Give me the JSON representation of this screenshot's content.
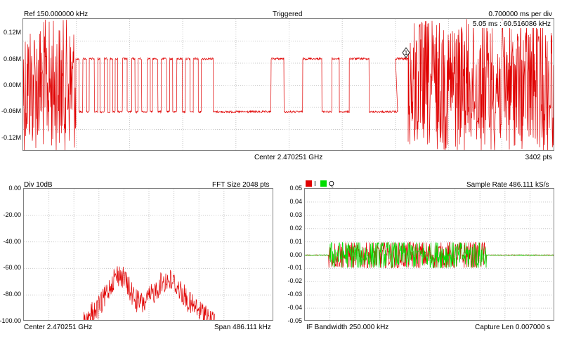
{
  "top": {
    "ref_label": "Ref 150.000000 kHz",
    "status": "Triggered",
    "time_div": "0.700000 ms per div",
    "marker_readout": "5.05 ms : 60.516086 kHz",
    "center": "Center 2.470251 GHz",
    "points": "3402 pts",
    "marker_label": "1",
    "y_ticks": [
      "0.12M",
      "0.06M",
      "0.00M",
      "-0.06M",
      "-0.12M"
    ],
    "trace_color": "#e00000"
  },
  "spectrum": {
    "div_label": "Div 10dB",
    "fft_size": "FFT Size 2048 pts",
    "center": "Center 2.470251 GHz",
    "span": "Span 486.111 kHz",
    "y_ticks": [
      "0.00",
      "-20.00",
      "-40.00",
      "-60.00",
      "-80.00",
      "-100.00"
    ],
    "trace_color": "#e00000"
  },
  "iq": {
    "legend_i": "I",
    "legend_q": "Q",
    "i_color": "#e00000",
    "q_color": "#00dd00",
    "sample_rate": "Sample Rate 486.111 kS/s",
    "if_bandwidth": "IF Bandwidth 250.000 kHz",
    "capture_len": "Capture Len 0.007000 s",
    "y_ticks": [
      "0.05",
      "0.04",
      "0.03",
      "0.02",
      "0.01",
      "0.00",
      "-0.01",
      "-0.02",
      "-0.03",
      "-0.04",
      "-0.05"
    ]
  },
  "chart_data": [
    {
      "type": "line",
      "title": "",
      "xlabel": "Center 2.470251 GHz",
      "ylabel": "",
      "ylim": [
        -0.15,
        0.15
      ],
      "y_ticks": [
        0.12,
        0.06,
        0.0,
        -0.06,
        -0.12
      ],
      "grid": true,
      "series": [
        {
          "values": [
            0.0
          ]
        }
      ]
    },
    {
      "type": "line",
      "title": "",
      "xlabel": "",
      "ylabel": "",
      "ylim": [
        -100,
        0
      ],
      "y_ticks": [
        0,
        -20,
        -40,
        -60,
        -80,
        -100
      ],
      "grid": true,
      "series": [
        {
          "values": [
            -100.0
          ]
        }
      ]
    },
    {
      "type": "line",
      "title": "",
      "xlabel": "",
      "ylabel": "",
      "ylim": [
        -0.05,
        0.05
      ],
      "y_ticks": [
        0.05,
        0.04,
        0.03,
        0.02,
        0.01,
        0.0,
        -0.01,
        -0.02,
        -0.03,
        -0.04,
        -0.05
      ],
      "grid": true,
      "series": [
        {
          "name": "I",
          "values": [
            0.0
          ]
        },
        {
          "name": "Q",
          "values": [
            0.0
          ]
        }
      ]
    }
  ]
}
